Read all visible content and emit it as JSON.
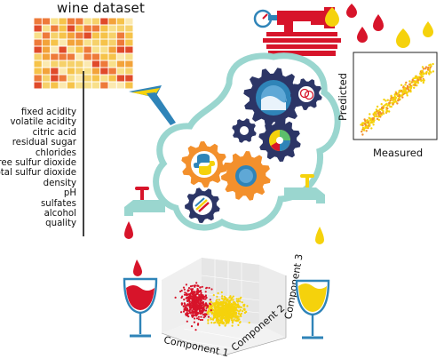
{
  "dataset": {
    "title": "wine dataset",
    "features": [
      "fixed acidity",
      "volatile acidity",
      "citric acid",
      "residual sugar",
      "chlorides",
      "free sulfur dioxide",
      "total sulfur dioxide",
      "density",
      "pH",
      "sulfates",
      "alcohol",
      "quality"
    ]
  },
  "prediction_plot": {
    "ylabel": "Predicted",
    "xlabel": "Measured"
  },
  "pca_plot": {
    "axis1": "Component 1",
    "axis2": "Component 2",
    "axis3": "Component 3"
  },
  "colors": {
    "red_wine": "#d7142a",
    "white_wine": "#f5d20c",
    "teal": "#9ad6cf",
    "navy": "#2c3566",
    "orange": "#f3902c",
    "pipe_blue": "#2f84b8"
  },
  "icons": [
    "funnel-icon",
    "gauge-icon",
    "tap-icon",
    "gear-icon",
    "wine-glass-icon",
    "drop-icon",
    "python-logo-icon",
    "brain-icon",
    "pie-chart-icon",
    "bar-chart-icon"
  ]
}
